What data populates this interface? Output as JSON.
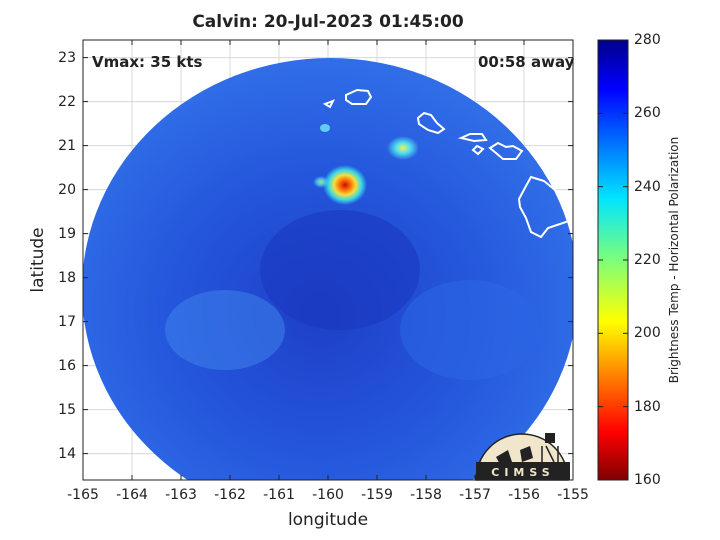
{
  "title": "Calvin: 20-Jul-2023 01:45:00",
  "annotations": {
    "vmax": "Vmax: 35 kts",
    "eta": "00:58 away"
  },
  "axes": {
    "xlabel": "longitude",
    "ylabel": "latitude",
    "xticks": [
      "-165",
      "-164",
      "-163",
      "-162",
      "-161",
      "-160",
      "-159",
      "-158",
      "-157",
      "-156",
      "-155"
    ],
    "yticks": [
      "23",
      "22",
      "21",
      "20",
      "19",
      "18",
      "17",
      "16",
      "15",
      "14"
    ],
    "xlim": [
      -165,
      -155
    ],
    "ylim": [
      13.4,
      23.4
    ],
    "grid": true
  },
  "colorbar": {
    "label": "Brightness Temp - Horizontal Polarization",
    "ticks": [
      "280",
      "260",
      "240",
      "220",
      "200",
      "180",
      "160"
    ],
    "range": [
      160,
      280
    ],
    "colormap": "jet"
  },
  "logo": {
    "text": "CIMSS"
  },
  "colors": {
    "background_blue": "#2a5fe0",
    "hot_spot": "#e83010",
    "coastline": "#ffffff"
  }
}
